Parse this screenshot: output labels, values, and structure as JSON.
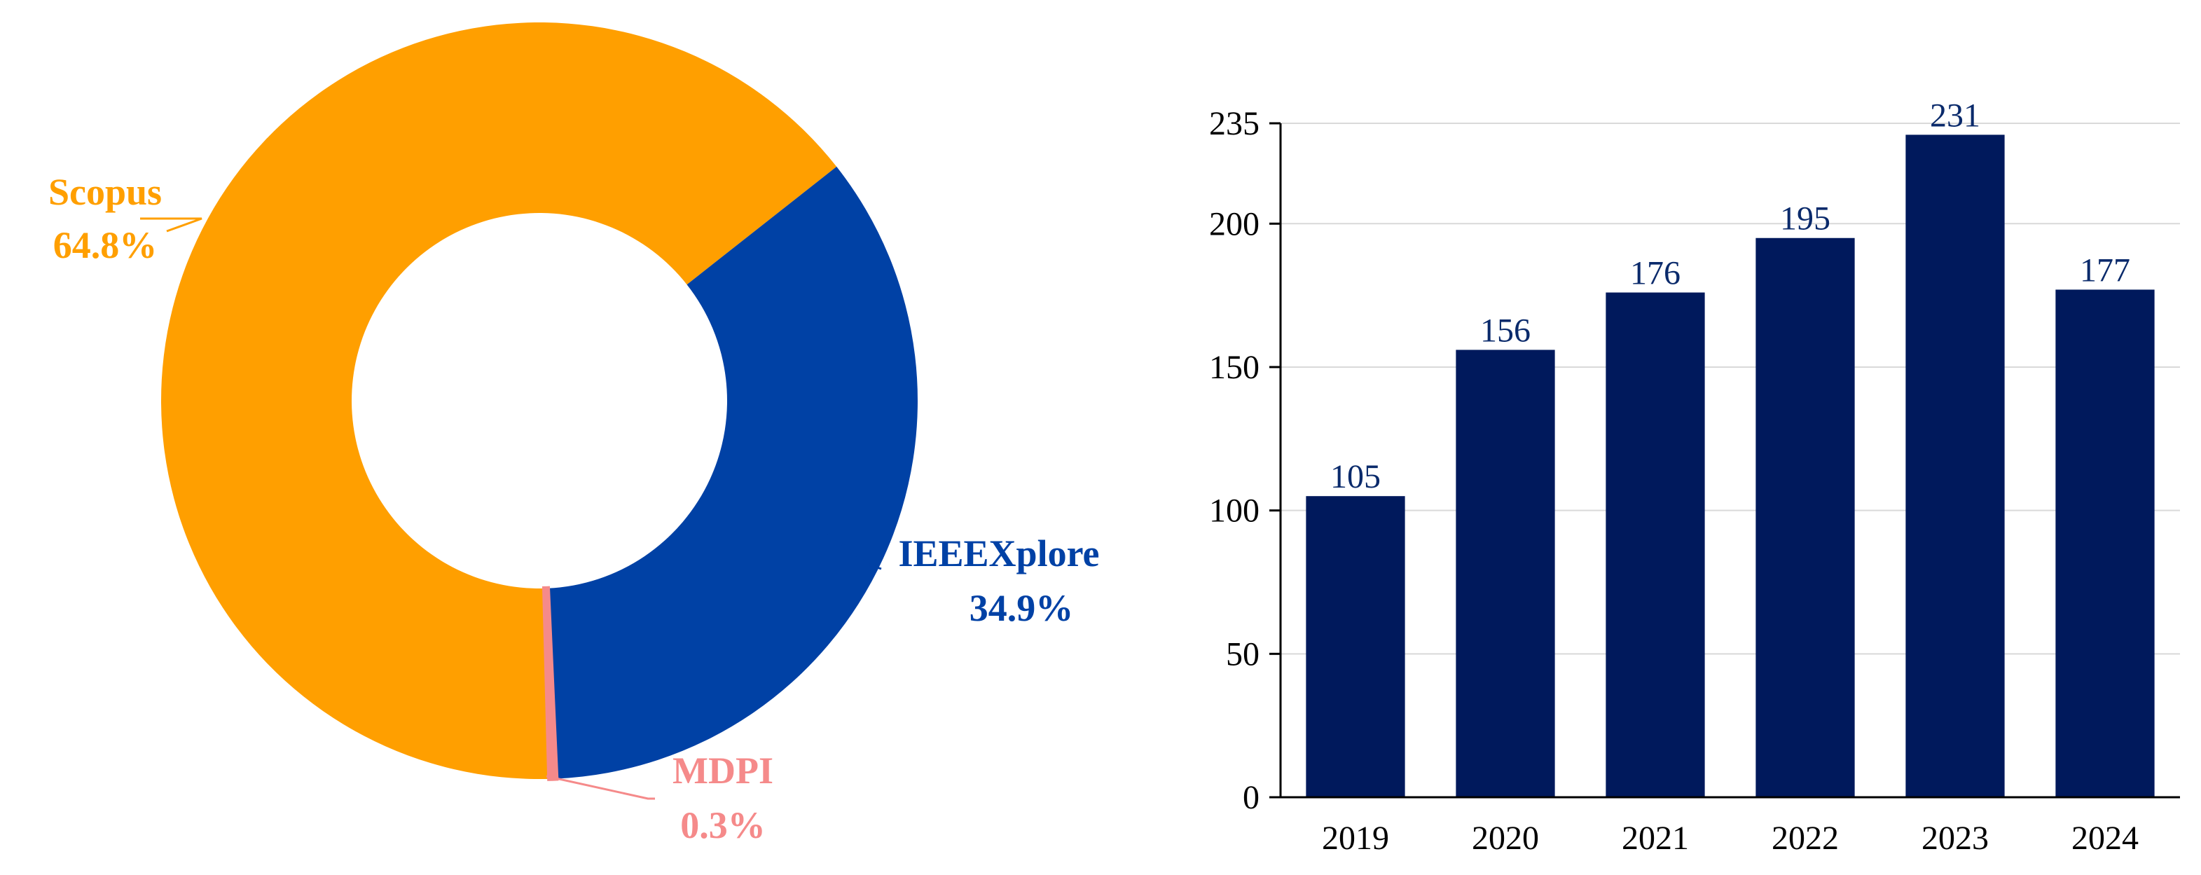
{
  "chart_data": [
    {
      "type": "pie",
      "variant": "donut",
      "slices": [
        {
          "name": "Scopus",
          "pct_label": "64.8%",
          "value": 64.8,
          "color": "#FF9F00"
        },
        {
          "name": "IEEEXplore",
          "pct_label": "34.9%",
          "value": 34.9,
          "color": "#0041A5"
        },
        {
          "name": "MDPI",
          "pct_label": "0.3%",
          "value": 0.3,
          "color": "#F58A8A"
        }
      ]
    },
    {
      "type": "bar",
      "categories": [
        "2019",
        "2020",
        "2021",
        "2022",
        "2023",
        "2024"
      ],
      "values": [
        105,
        156,
        176,
        195,
        231,
        177
      ],
      "value_labels": [
        "105",
        "156",
        "176",
        "195",
        "231",
        "177"
      ],
      "yticks": [
        "0",
        "50",
        "100",
        "150",
        "200",
        "235"
      ],
      "ylim": [
        0,
        235
      ],
      "bar_color": "#00195C",
      "label_color": "#0A2A6B",
      "grid": true,
      "title": "",
      "xlabel": "",
      "ylabel": ""
    }
  ]
}
